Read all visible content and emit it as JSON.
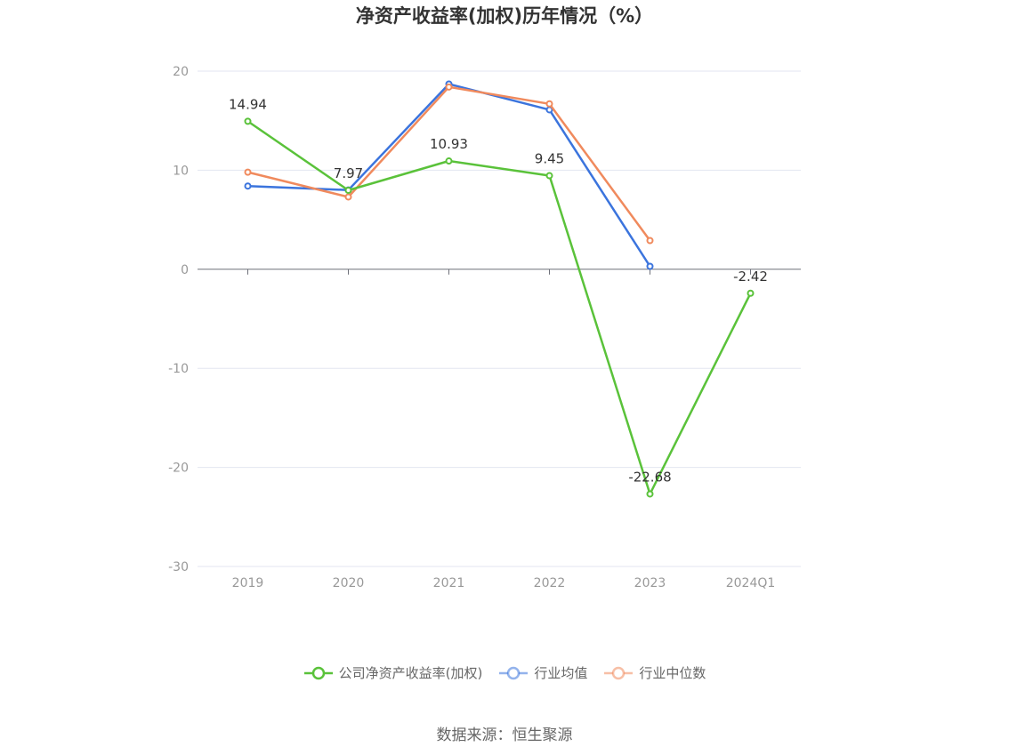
{
  "title": "净资产收益率(加权)历年情况（%）",
  "source": "数据来源：恒生聚源",
  "legend": [
    {
      "name": "公司净资产收益率(加权)",
      "color": "#5ac23a"
    },
    {
      "name": "行业均值",
      "color": "#3b74dd"
    },
    {
      "name": "行业中位数",
      "color": "#f08a5d"
    }
  ],
  "chart_data": {
    "type": "line",
    "categories": [
      "2019",
      "2020",
      "2021",
      "2022",
      "2023",
      "2024Q1"
    ],
    "ylim": [
      -30,
      20
    ],
    "yticks": [
      20,
      10,
      0,
      -10,
      -20,
      -30
    ],
    "grid": true,
    "legend_position": "bottom",
    "series": [
      {
        "name": "公司净资产收益率(加权)",
        "color": "#5ac23a",
        "values": [
          14.94,
          7.97,
          10.93,
          9.45,
          -22.68,
          -2.42
        ],
        "labels": [
          "14.94",
          "7.97",
          "10.93",
          "9.45",
          "-22.68",
          "-2.42"
        ]
      },
      {
        "name": "行业均值",
        "color": "#3b74dd",
        "values": [
          8.4,
          8.0,
          18.7,
          16.1,
          0.3,
          null
        ]
      },
      {
        "name": "行业中位数",
        "color": "#f08a5d",
        "values": [
          9.8,
          7.3,
          18.4,
          16.7,
          2.9,
          null
        ]
      }
    ]
  }
}
